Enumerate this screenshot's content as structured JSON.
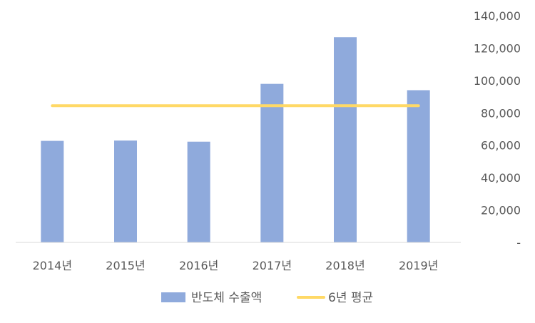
{
  "chart_data": {
    "type": "bar",
    "categories": [
      "2014년",
      "2015년",
      "2016년",
      "2017년",
      "2018년",
      "2019년"
    ],
    "series": [
      {
        "name": "반도체 수출액",
        "type": "bar",
        "color": "#8faadc",
        "values": [
          62700,
          62900,
          62200,
          97900,
          126700,
          94000
        ]
      },
      {
        "name": "6년 평균",
        "type": "line",
        "color": "#ffd966",
        "values": [
          84400,
          84400,
          84400,
          84400,
          84400,
          84400
        ]
      }
    ],
    "yticks": [
      "-",
      "20,000",
      "40,000",
      "60,000",
      "80,000",
      "100,000",
      "120,000",
      "140,000"
    ],
    "ylim": [
      0,
      140000
    ],
    "y_axis_position": "right",
    "grid": false,
    "legend_position": "bottom"
  }
}
